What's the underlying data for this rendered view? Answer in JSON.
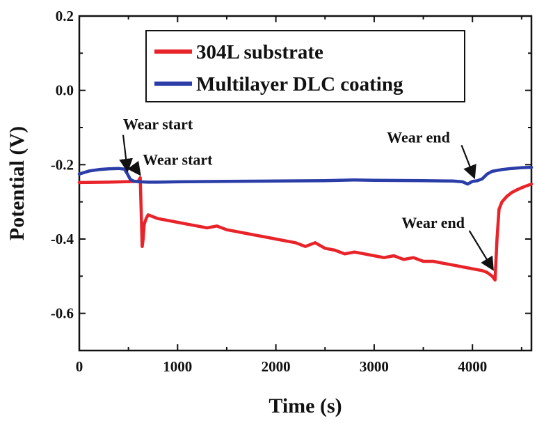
{
  "chart_data": {
    "type": "line",
    "xlabel": "Time (s)",
    "ylabel": "Potential (V)",
    "xlim": [
      0,
      4600
    ],
    "ylim": [
      -0.7,
      0.2
    ],
    "xticks": [
      0,
      1000,
      2000,
      3000,
      4000
    ],
    "xtick_labels": [
      "0",
      "1000",
      "2000",
      "3000",
      "4000"
    ],
    "yticks": [
      0.2,
      0.0,
      -0.2,
      -0.4,
      -0.6
    ],
    "ytick_labels": [
      "0.2",
      "0.0",
      "-0.2",
      "-0.4",
      "-0.6"
    ],
    "legend_position": "top-right",
    "series": [
      {
        "name": "304L substrate",
        "color": "#e8232a",
        "x": [
          0,
          300,
          600,
          620,
          640,
          650,
          660,
          680,
          700,
          750,
          800,
          900,
          1000,
          1100,
          1200,
          1300,
          1400,
          1500,
          1600,
          1700,
          1800,
          1900,
          2000,
          2100,
          2200,
          2300,
          2400,
          2500,
          2600,
          2700,
          2800,
          2900,
          3000,
          3100,
          3200,
          3300,
          3400,
          3500,
          3600,
          3700,
          3800,
          3900,
          4000,
          4100,
          4150,
          4200,
          4230,
          4250,
          4270,
          4300,
          4350,
          4400,
          4450,
          4500,
          4550,
          4600
        ],
        "y": [
          -0.248,
          -0.247,
          -0.245,
          -0.235,
          -0.42,
          -0.4,
          -0.36,
          -0.345,
          -0.335,
          -0.34,
          -0.345,
          -0.35,
          -0.355,
          -0.36,
          -0.365,
          -0.37,
          -0.365,
          -0.375,
          -0.38,
          -0.385,
          -0.39,
          -0.395,
          -0.4,
          -0.405,
          -0.41,
          -0.42,
          -0.41,
          -0.425,
          -0.43,
          -0.44,
          -0.435,
          -0.44,
          -0.445,
          -0.45,
          -0.445,
          -0.455,
          -0.45,
          -0.46,
          -0.46,
          -0.465,
          -0.47,
          -0.475,
          -0.48,
          -0.485,
          -0.49,
          -0.5,
          -0.51,
          -0.4,
          -0.32,
          -0.3,
          -0.285,
          -0.275,
          -0.268,
          -0.262,
          -0.257,
          -0.252
        ]
      },
      {
        "name": "Multilayer DLC coating",
        "color": "#2b3ea8",
        "x": [
          0,
          100,
          200,
          300,
          400,
          460,
          490,
          520,
          560,
          620,
          700,
          800,
          1000,
          1500,
          2000,
          2500,
          2800,
          3000,
          3500,
          3800,
          3900,
          3950,
          4000,
          4050,
          4100,
          4150,
          4200,
          4300,
          4400,
          4500,
          4600
        ],
        "y": [
          -0.225,
          -0.217,
          -0.213,
          -0.211,
          -0.21,
          -0.212,
          -0.225,
          -0.24,
          -0.245,
          -0.246,
          -0.247,
          -0.247,
          -0.246,
          -0.245,
          -0.244,
          -0.243,
          -0.241,
          -0.242,
          -0.243,
          -0.244,
          -0.246,
          -0.252,
          -0.245,
          -0.243,
          -0.238,
          -0.225,
          -0.218,
          -0.213,
          -0.21,
          -0.208,
          -0.207
        ]
      }
    ],
    "annotations": [
      {
        "label": "Wear start",
        "series": "Multilayer DLC coating",
        "x": 490,
        "y": -0.225,
        "text_x": 800,
        "text_y": -0.105
      },
      {
        "label": "Wear start",
        "series": "304L substrate",
        "x": 620,
        "y": -0.235,
        "text_x": 1000,
        "text_y": -0.2
      },
      {
        "label": "Wear end",
        "series": "Multilayer DLC coating",
        "x": 4020,
        "y": -0.243,
        "text_x": 3450,
        "text_y": -0.14
      },
      {
        "label": "Wear end",
        "series": "304L substrate",
        "x": 4210,
        "y": -0.49,
        "text_x": 3600,
        "text_y": -0.37
      }
    ]
  }
}
